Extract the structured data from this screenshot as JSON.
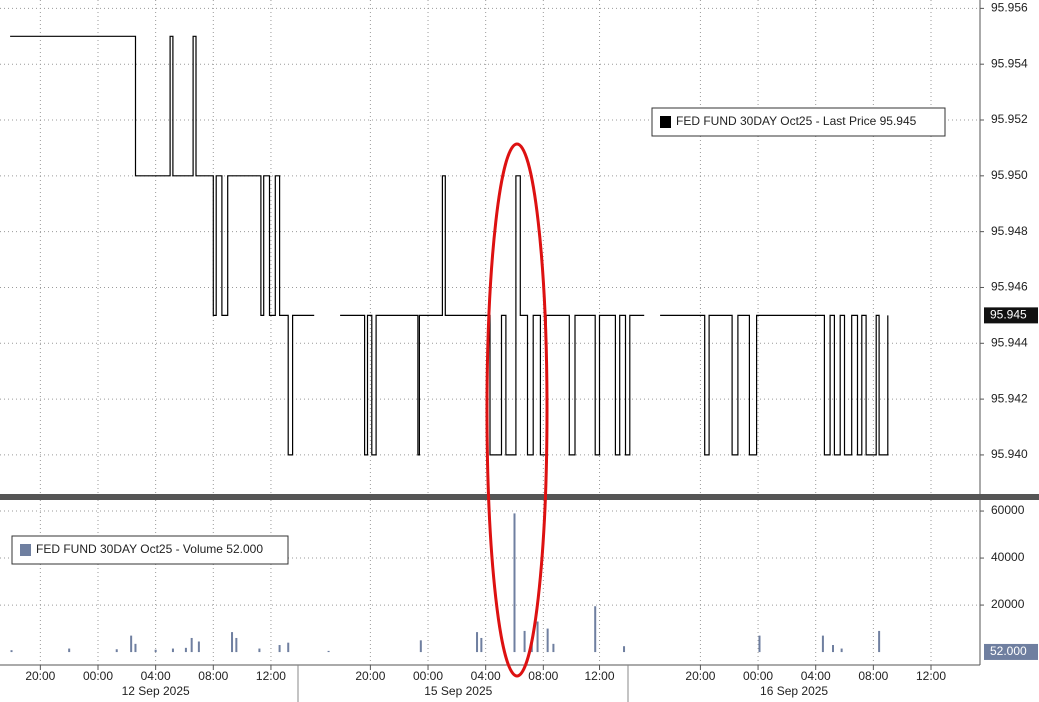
{
  "chart_data": [
    {
      "type": "line",
      "step": true,
      "x": [
        -2.1,
        6.6,
        9.0,
        9.2,
        10.6,
        10.8,
        12.0,
        12.2,
        12.6,
        13.0,
        15.3,
        15.5,
        15.9,
        16.3,
        16.6,
        17.2,
        17.5,
        19.0,
        20.8,
        22.5,
        22.7,
        23.0,
        23.3,
        26.2,
        26.3,
        27.9,
        28.1,
        31.2,
        32.0,
        32.3,
        33.0,
        33.3,
        33.8,
        34.2,
        34.7,
        35.1,
        36.7,
        37.1,
        38.5,
        38.8,
        39.9,
        40.2,
        40.6,
        40.9,
        41.9,
        43.0,
        46.1,
        46.4,
        48.0,
        48.4,
        49.2,
        49.7,
        54.4,
        54.8,
        55.1,
        55.5,
        55.8,
        56.3,
        56.7,
        57.0,
        57.3,
        58.0,
        58.2,
        58.8
      ],
      "series": [
        {
          "name": "FED FUND 30DAY Oct25 - Last Price 95.945",
          "color": "#000000",
          "values": [
            95.955,
            95.95,
            95.955,
            95.95,
            95.955,
            95.95,
            95.945,
            95.95,
            95.945,
            95.95,
            95.945,
            95.95,
            95.945,
            95.95,
            95.945,
            95.94,
            95.945,
            null,
            95.945,
            95.94,
            95.945,
            95.94,
            95.945,
            95.94,
            95.945,
            95.95,
            95.945,
            95.94,
            95.945,
            95.94,
            95.95,
            95.945,
            95.94,
            95.945,
            95.94,
            95.945,
            95.94,
            95.945,
            95.94,
            95.945,
            95.94,
            95.945,
            95.94,
            95.945,
            null,
            95.945,
            95.94,
            95.945,
            95.94,
            95.945,
            95.94,
            95.945,
            95.94,
            95.945,
            95.94,
            95.945,
            95.94,
            95.945,
            95.94,
            95.945,
            95.94,
            95.945,
            95.94,
            95.945
          ]
        }
      ],
      "last_value": 95.945,
      "xlim": [
        -2.8,
        65.2
      ],
      "ylim": [
        95.9386,
        95.9563
      ],
      "yticks": [
        {
          "value": 95.94,
          "label": "95.940"
        },
        95.942,
        95.944,
        95.946,
        95.948,
        {
          "value": 95.95,
          "label": "95.950"
        },
        95.952,
        95.954,
        95.956
      ],
      "grid": true,
      "legend": "upper right"
    },
    {
      "type": "bar",
      "x": [
        -2.0,
        2.0,
        5.3,
        6.3,
        6.6,
        8.0,
        9.2,
        10.1,
        10.5,
        11.0,
        13.3,
        13.6,
        15.2,
        16.6,
        17.2,
        20.0,
        26.4,
        30.3,
        30.6,
        32.9,
        33.6,
        34.1,
        34.5,
        35.2,
        35.6,
        38.5,
        40.5,
        49.9,
        54.3,
        55.0,
        55.6,
        58.2
      ],
      "series": [
        {
          "name": "FED FUND 30DAY Oct25 - Volume 52.000",
          "color": "#6f7fa0",
          "values": [
            800,
            1500,
            1200,
            7000,
            3500,
            1000,
            1500,
            1800,
            6000,
            4500,
            8500,
            6000,
            1500,
            3000,
            4000,
            500,
            5000,
            8500,
            6000,
            59000,
            9000,
            4000,
            13000,
            10000,
            3500,
            19500,
            2500,
            7000,
            7000,
            3000,
            1500,
            9000
          ]
        }
      ],
      "last_value": {
        "value": 52,
        "label": "52.000"
      },
      "xlim": [
        -2.8,
        65.2
      ],
      "ylim": [
        -5500,
        64700
      ],
      "yticks": [
        20000,
        40000,
        60000
      ],
      "xticks": [
        {
          "value": 0,
          "label": "20:00"
        },
        {
          "value": 4,
          "label": "00:00"
        },
        {
          "value": 8,
          "label": "04:00"
        },
        {
          "value": 12,
          "label": "08:00"
        },
        {
          "value": 16,
          "label": "12:00"
        },
        {
          "value": 22.9,
          "label": "20:00"
        },
        {
          "value": 26.9,
          "label": "00:00"
        },
        {
          "value": 30.9,
          "label": "04:00"
        },
        {
          "value": 34.9,
          "label": "08:00"
        },
        {
          "value": 38.8,
          "label": "12:00"
        },
        {
          "value": 45.8,
          "label": "20:00"
        },
        {
          "value": 49.8,
          "label": "00:00"
        },
        {
          "value": 53.8,
          "label": "04:00"
        },
        {
          "value": 57.8,
          "label": "08:00"
        },
        {
          "value": 61.8,
          "label": "12:00"
        }
      ],
      "date_labels": [
        {
          "value": 8,
          "label": "12 Sep 2025"
        },
        {
          "value": 29.0,
          "label": "15 Sep 2025"
        },
        {
          "value": 52.3,
          "label": "16 Sep 2025"
        }
      ],
      "grid": true,
      "legend": "upper left"
    }
  ]
}
